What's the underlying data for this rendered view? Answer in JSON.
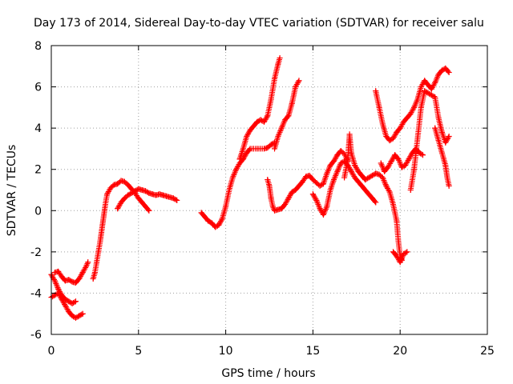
{
  "chart_data": {
    "type": "scatter",
    "title": "Day 173 of 2014, Sidereal Day-to-day VTEC variation (SDTVAR) for receiver salu",
    "xlabel": "GPS time / hours",
    "ylabel": "SDTVAR / TECUs",
    "xlim": [
      0,
      25
    ],
    "ylim": [
      -6,
      8
    ],
    "x_ticks": [
      "0",
      "5",
      "10",
      "15",
      "20",
      "25"
    ],
    "y_ticks": [
      "-6",
      "-4",
      "-2",
      "0",
      "2",
      "4",
      "6",
      "8"
    ],
    "grid": true,
    "legend": "none",
    "marker": "plus",
    "color": "#ff0000",
    "series": [
      {
        "points": [
          [
            0.0,
            -3.1
          ],
          [
            0.2,
            -3.4
          ],
          [
            0.4,
            -3.8
          ],
          [
            0.6,
            -4.1
          ],
          [
            0.8,
            -4.3
          ],
          [
            1.0,
            -4.4
          ],
          [
            1.2,
            -4.5
          ],
          [
            1.4,
            -4.4
          ]
        ]
      },
      {
        "points": [
          [
            0.0,
            -4.2
          ],
          [
            0.2,
            -4.1
          ],
          [
            0.4,
            -4.0
          ],
          [
            0.6,
            -4.3
          ],
          [
            0.8,
            -4.6
          ],
          [
            1.0,
            -4.9
          ],
          [
            1.2,
            -5.1
          ],
          [
            1.4,
            -5.2
          ],
          [
            1.6,
            -5.1
          ],
          [
            1.8,
            -5.0
          ]
        ]
      },
      {
        "points": [
          [
            0.2,
            -3.0
          ],
          [
            0.4,
            -2.95
          ],
          [
            0.6,
            -3.2
          ],
          [
            0.8,
            -3.4
          ],
          [
            1.0,
            -3.35
          ],
          [
            1.2,
            -3.45
          ],
          [
            1.4,
            -3.5
          ],
          [
            1.6,
            -3.3
          ],
          [
            1.8,
            -3.0
          ],
          [
            2.0,
            -2.7
          ],
          [
            2.1,
            -2.5
          ]
        ]
      },
      {
        "points": [
          [
            2.4,
            -3.3
          ],
          [
            2.5,
            -3.0
          ],
          [
            2.6,
            -2.5
          ],
          [
            2.7,
            -2.0
          ],
          [
            2.8,
            -1.5
          ],
          [
            2.9,
            -0.9
          ],
          [
            3.0,
            -0.3
          ],
          [
            3.1,
            0.3
          ],
          [
            3.2,
            0.8
          ],
          [
            3.4,
            1.1
          ],
          [
            3.6,
            1.25
          ],
          [
            3.8,
            1.3
          ],
          [
            4.0,
            1.45
          ],
          [
            4.2,
            1.4
          ],
          [
            4.4,
            1.25
          ],
          [
            4.6,
            1.05
          ],
          [
            4.8,
            0.85
          ],
          [
            5.0,
            0.6
          ],
          [
            5.2,
            0.4
          ],
          [
            5.4,
            0.2
          ],
          [
            5.6,
            0.0
          ]
        ]
      },
      {
        "points": [
          [
            3.8,
            0.1
          ],
          [
            4.0,
            0.4
          ],
          [
            4.2,
            0.6
          ],
          [
            4.4,
            0.75
          ],
          [
            4.6,
            0.85
          ],
          [
            4.8,
            0.95
          ],
          [
            5.0,
            1.05
          ],
          [
            5.2,
            1.0
          ],
          [
            5.4,
            0.95
          ],
          [
            5.6,
            0.85
          ],
          [
            5.8,
            0.8
          ],
          [
            6.0,
            0.75
          ],
          [
            6.2,
            0.8
          ],
          [
            6.4,
            0.75
          ],
          [
            6.6,
            0.7
          ],
          [
            6.8,
            0.65
          ],
          [
            7.0,
            0.6
          ],
          [
            7.2,
            0.5
          ]
        ]
      },
      {
        "points": [
          [
            8.6,
            -0.1
          ],
          [
            8.8,
            -0.3
          ],
          [
            9.0,
            -0.5
          ],
          [
            9.2,
            -0.6
          ],
          [
            9.4,
            -0.8
          ],
          [
            9.6,
            -0.7
          ],
          [
            9.8,
            -0.4
          ],
          [
            10.0,
            0.2
          ],
          [
            10.2,
            1.0
          ],
          [
            10.4,
            1.6
          ],
          [
            10.6,
            2.0
          ],
          [
            10.8,
            2.3
          ],
          [
            11.0,
            2.5
          ],
          [
            11.2,
            2.8
          ],
          [
            11.4,
            3.0
          ],
          [
            11.6,
            3.0
          ],
          [
            11.8,
            3.0
          ],
          [
            12.0,
            3.0
          ],
          [
            12.2,
            3.0
          ],
          [
            12.4,
            3.05
          ],
          [
            12.6,
            3.2
          ],
          [
            12.8,
            3.3
          ]
        ]
      },
      {
        "points": [
          [
            10.8,
            2.5
          ],
          [
            11.0,
            3.0
          ],
          [
            11.2,
            3.6
          ],
          [
            11.4,
            3.9
          ],
          [
            11.6,
            4.1
          ],
          [
            11.8,
            4.3
          ],
          [
            12.0,
            4.4
          ],
          [
            12.2,
            4.3
          ],
          [
            12.4,
            4.6
          ],
          [
            12.6,
            5.4
          ],
          [
            12.8,
            6.4
          ],
          [
            13.0,
            7.1
          ],
          [
            13.1,
            7.4
          ]
        ]
      },
      {
        "points": [
          [
            12.4,
            1.5
          ],
          [
            12.5,
            1.2
          ],
          [
            12.6,
            0.6
          ],
          [
            12.7,
            0.2
          ],
          [
            12.8,
            0.0
          ],
          [
            13.0,
            0.05
          ],
          [
            13.2,
            0.1
          ],
          [
            13.4,
            0.3
          ],
          [
            13.6,
            0.6
          ],
          [
            13.8,
            0.9
          ],
          [
            14.0,
            1.0
          ],
          [
            14.2,
            1.2
          ],
          [
            14.4,
            1.4
          ],
          [
            14.6,
            1.65
          ],
          [
            14.8,
            1.7
          ],
          [
            15.0,
            1.5
          ],
          [
            15.2,
            1.35
          ],
          [
            15.4,
            1.2
          ],
          [
            15.6,
            1.3
          ],
          [
            15.8,
            1.8
          ],
          [
            16.0,
            2.2
          ],
          [
            16.2,
            2.4
          ],
          [
            16.4,
            2.7
          ],
          [
            16.6,
            2.9
          ],
          [
            16.8,
            2.75
          ],
          [
            17.0,
            2.4
          ]
        ]
      },
      {
        "points": [
          [
            12.8,
            3.0
          ],
          [
            13.0,
            3.6
          ],
          [
            13.2,
            4.0
          ],
          [
            13.4,
            4.4
          ],
          [
            13.6,
            4.6
          ],
          [
            13.8,
            5.2
          ],
          [
            14.0,
            6.0
          ],
          [
            14.2,
            6.3
          ]
        ]
      },
      {
        "points": [
          [
            15.0,
            0.8
          ],
          [
            15.2,
            0.5
          ],
          [
            15.4,
            0.1
          ],
          [
            15.6,
            -0.2
          ],
          [
            15.8,
            0.2
          ],
          [
            16.0,
            1.0
          ],
          [
            16.2,
            1.5
          ],
          [
            16.4,
            1.9
          ],
          [
            16.6,
            2.3
          ],
          [
            16.8,
            2.4
          ],
          [
            17.0,
            2.2
          ],
          [
            17.2,
            1.9
          ],
          [
            17.4,
            1.6
          ],
          [
            17.6,
            1.4
          ],
          [
            17.8,
            1.2
          ],
          [
            18.0,
            1.0
          ],
          [
            18.2,
            0.8
          ],
          [
            18.4,
            0.6
          ],
          [
            18.6,
            0.4
          ]
        ]
      },
      {
        "points": [
          [
            16.8,
            1.6
          ],
          [
            17.0,
            2.5
          ],
          [
            17.1,
            3.7
          ],
          [
            17.2,
            2.8
          ],
          [
            17.4,
            2.2
          ],
          [
            17.6,
            1.9
          ],
          [
            17.8,
            1.7
          ],
          [
            18.0,
            1.5
          ],
          [
            18.2,
            1.6
          ],
          [
            18.4,
            1.7
          ],
          [
            18.6,
            1.8
          ],
          [
            18.8,
            1.75
          ],
          [
            19.0,
            1.6
          ],
          [
            19.2,
            1.2
          ],
          [
            19.4,
            0.9
          ],
          [
            19.6,
            0.3
          ],
          [
            19.8,
            -0.5
          ],
          [
            19.9,
            -1.5
          ],
          [
            20.0,
            -2.2
          ],
          [
            20.1,
            -2.4
          ]
        ]
      },
      {
        "points": [
          [
            18.6,
            5.8
          ],
          [
            18.8,
            5.0
          ],
          [
            19.0,
            4.2
          ],
          [
            19.2,
            3.6
          ],
          [
            19.4,
            3.4
          ],
          [
            19.6,
            3.5
          ],
          [
            19.8,
            3.8
          ],
          [
            20.0,
            4.0
          ],
          [
            20.2,
            4.3
          ],
          [
            20.4,
            4.5
          ],
          [
            20.6,
            4.7
          ],
          [
            20.8,
            5.0
          ],
          [
            21.0,
            5.4
          ],
          [
            21.2,
            6.0
          ],
          [
            21.4,
            6.3
          ],
          [
            21.6,
            6.1
          ],
          [
            21.8,
            5.9
          ],
          [
            22.0,
            6.2
          ],
          [
            22.2,
            6.6
          ],
          [
            22.4,
            6.8
          ],
          [
            22.6,
            6.9
          ],
          [
            22.8,
            6.7
          ]
        ]
      },
      {
        "points": [
          [
            18.9,
            2.3
          ],
          [
            19.1,
            1.9
          ],
          [
            19.3,
            2.1
          ],
          [
            19.5,
            2.4
          ],
          [
            19.7,
            2.7
          ],
          [
            19.9,
            2.5
          ],
          [
            20.1,
            2.1
          ],
          [
            20.3,
            2.2
          ],
          [
            20.5,
            2.5
          ],
          [
            20.7,
            2.8
          ],
          [
            20.9,
            3.0
          ],
          [
            21.1,
            2.8
          ],
          [
            21.3,
            2.7
          ]
        ]
      },
      {
        "points": [
          [
            19.6,
            -2.0
          ],
          [
            19.8,
            -2.2
          ],
          [
            20.0,
            -2.5
          ],
          [
            20.2,
            -2.1
          ],
          [
            20.4,
            -2.0
          ]
        ]
      },
      {
        "points": [
          [
            20.6,
            1.0
          ],
          [
            20.8,
            2.0
          ],
          [
            21.0,
            3.5
          ],
          [
            21.2,
            5.0
          ],
          [
            21.4,
            5.8
          ],
          [
            21.6,
            5.7
          ],
          [
            21.8,
            5.6
          ],
          [
            22.0,
            5.5
          ],
          [
            22.2,
            4.5
          ],
          [
            22.4,
            3.8
          ],
          [
            22.6,
            3.3
          ],
          [
            22.8,
            3.6
          ]
        ]
      },
      {
        "points": [
          [
            22.0,
            4.0
          ],
          [
            22.2,
            3.4
          ],
          [
            22.4,
            2.8
          ],
          [
            22.6,
            2.2
          ],
          [
            22.7,
            1.6
          ],
          [
            22.8,
            1.2
          ]
        ]
      }
    ]
  }
}
